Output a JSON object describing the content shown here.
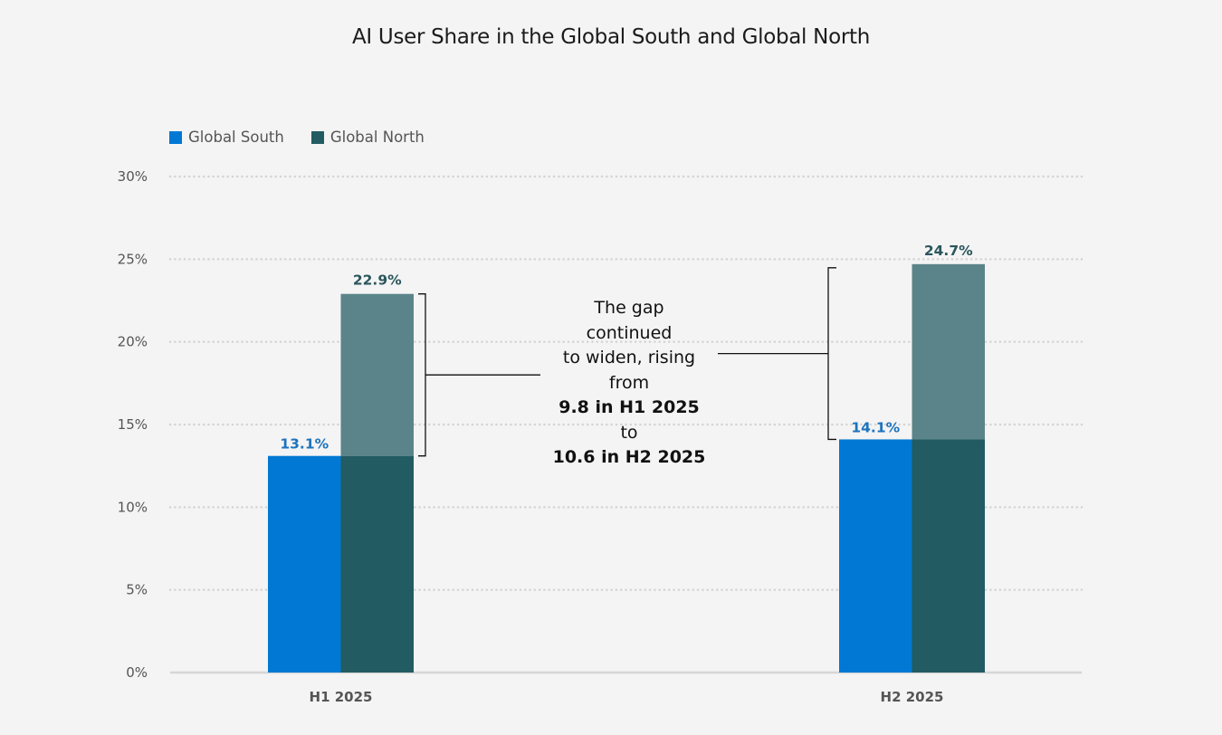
{
  "chart_data": {
    "type": "bar",
    "title": "AI User Share in the Global South and Global North",
    "xlabel": "",
    "ylabel": "",
    "categories": [
      "H1 2025",
      "H2 2025"
    ],
    "series": [
      {
        "name": "Global South",
        "values": [
          13.1,
          14.1
        ],
        "labels": [
          "13.1%",
          "14.1%"
        ],
        "color": "#0078d4"
      },
      {
        "name": "Global North",
        "values": [
          22.9,
          24.7
        ],
        "labels": [
          "22.9%",
          "24.7%"
        ],
        "color": "#225b62",
        "gap_color": "#5a8489"
      }
    ],
    "ylim": [
      0,
      30
    ],
    "yticks": [
      0,
      5,
      10,
      15,
      20,
      25,
      30
    ],
    "ytick_labels": [
      "0%",
      "5%",
      "10%",
      "15%",
      "20%",
      "25%",
      "30%"
    ],
    "grid": true,
    "legend_position": "top-left",
    "annotation": {
      "lines": [
        "The gap",
        "continued",
        "to widen, rising",
        "from"
      ],
      "bold1": "9.8 in H1 2025",
      "mid": "to",
      "bold2": "10.6 in H2 2025"
    }
  }
}
